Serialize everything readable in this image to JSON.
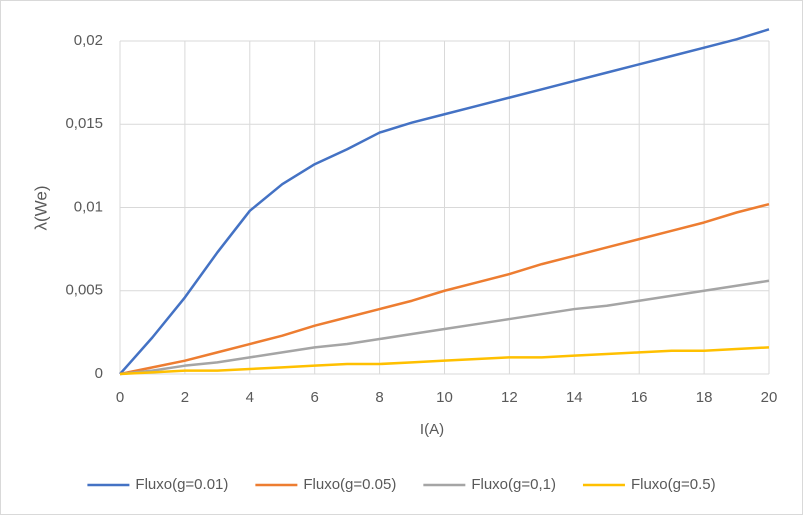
{
  "chart_data": {
    "type": "line",
    "x_label": "I(A)",
    "y_label": "λ(We)",
    "x": [
      0,
      1,
      2,
      3,
      4,
      5,
      6,
      7,
      8,
      9,
      10,
      11,
      12,
      13,
      14,
      15,
      16,
      17,
      18,
      19,
      20
    ],
    "series": [
      {
        "name": "Fluxo(g=0.01)",
        "color": "#4472c4",
        "values": [
          0,
          0.0022,
          0.0046,
          0.0073,
          0.0098,
          0.0114,
          0.0126,
          0.0135,
          0.0145,
          0.0151,
          0.0156,
          0.0161,
          0.0166,
          0.0171,
          0.0176,
          0.0181,
          0.0186,
          0.0191,
          0.0196,
          0.0201,
          0.0207
        ]
      },
      {
        "name": "Fluxo(g=0.05)",
        "color": "#ed7d31",
        "values": [
          0,
          0.0004,
          0.0008,
          0.0013,
          0.0018,
          0.0023,
          0.0029,
          0.0034,
          0.0039,
          0.0044,
          0.005,
          0.0055,
          0.006,
          0.0066,
          0.0071,
          0.0076,
          0.0081,
          0.0086,
          0.0091,
          0.0097,
          0.0102
        ]
      },
      {
        "name": "Fluxo(g=0,1)",
        "color": "#a5a5a5",
        "values": [
          0,
          0.0002,
          0.0005,
          0.0007,
          0.001,
          0.0013,
          0.0016,
          0.0018,
          0.0021,
          0.0024,
          0.0027,
          0.003,
          0.0033,
          0.0036,
          0.0039,
          0.0041,
          0.0044,
          0.0047,
          0.005,
          0.0053,
          0.0056
        ]
      },
      {
        "name": "Fluxo(g=0.5)",
        "color": "#ffc000",
        "values": [
          0,
          0.0001,
          0.0002,
          0.0002,
          0.0003,
          0.0004,
          0.0005,
          0.0006,
          0.0006,
          0.0007,
          0.0008,
          0.0009,
          0.001,
          0.001,
          0.0011,
          0.0012,
          0.0013,
          0.0014,
          0.0014,
          0.0015,
          0.0016
        ]
      }
    ],
    "xlim": [
      0,
      20
    ],
    "xticks": [
      0,
      2,
      4,
      6,
      8,
      10,
      12,
      14,
      16,
      18,
      20
    ],
    "ylim": [
      0,
      0.02
    ],
    "yticks": [
      0,
      {
        "value": 0.005,
        "label": "0,005"
      },
      {
        "value": 0.01,
        "label": "0,01"
      },
      {
        "value": 0.015,
        "label": "0,015"
      },
      {
        "value": 0.02,
        "label": "0,02"
      }
    ],
    "grid": true,
    "legend": "bottom"
  }
}
